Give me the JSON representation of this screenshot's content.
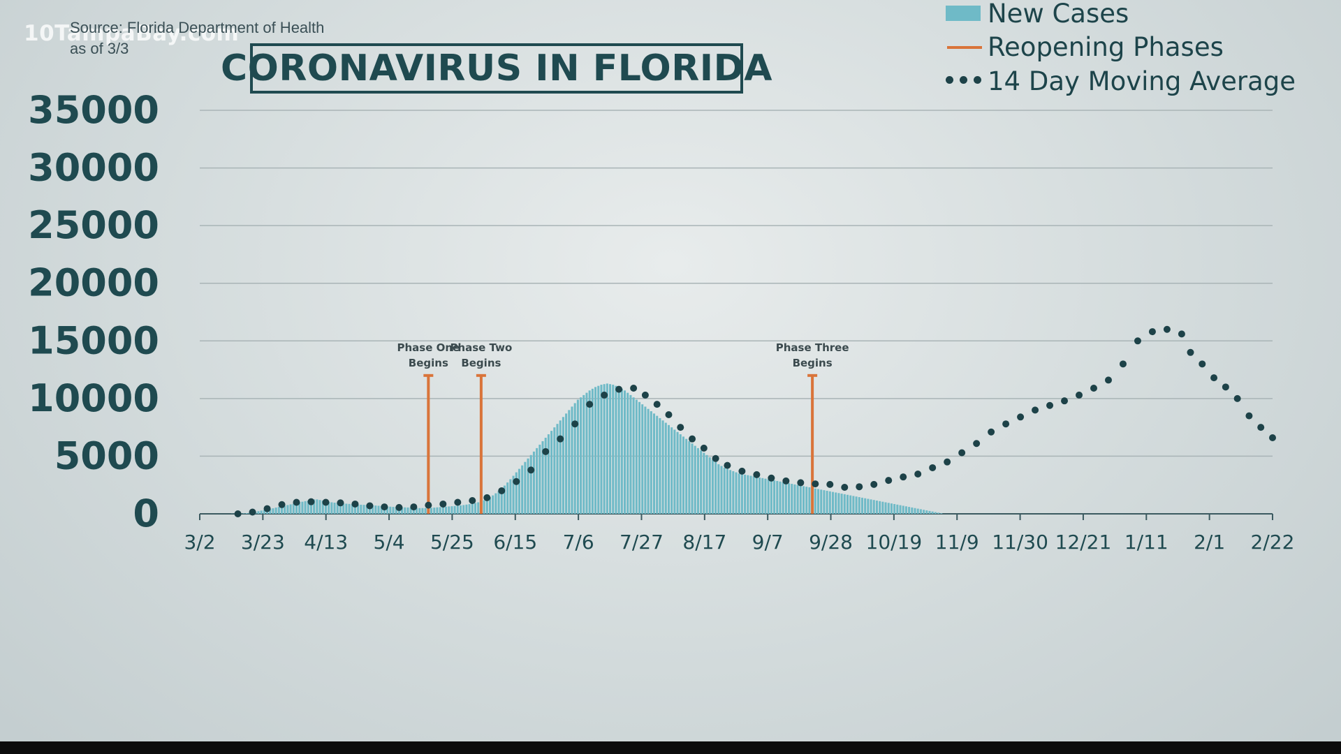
{
  "watermark": "10TampaBay.com",
  "source_line1": "Source: Florida Department of Health",
  "source_line2": "as of 3/3",
  "colors": {
    "bar": "#6fbac7",
    "phase": "#d9743a",
    "avg": "#1d4248",
    "axis_text": "#1f4a50",
    "grid": "#a9b4b6"
  },
  "chart_data": {
    "type": "bar",
    "title": "CORONAVIRUS IN FLORIDA",
    "ylim": [
      0,
      35000
    ],
    "yticks": [
      "35000",
      "30000",
      "25000",
      "20000",
      "15000",
      "10000",
      "5000",
      "0"
    ],
    "ytick_values": [
      35000,
      30000,
      25000,
      20000,
      15000,
      10000,
      5000,
      0
    ],
    "xticks": [
      "3/2",
      "3/23",
      "4/13",
      "5/4",
      "5/25",
      "6/15",
      "7/6",
      "7/27",
      "8/17",
      "9/7",
      "9/28",
      "10/19",
      "11/9",
      "11/30",
      "12/21",
      "1/11",
      "2/1",
      "2/22"
    ],
    "x_range_days": [
      0,
      366
    ],
    "grid": true,
    "legend_position": "top-right",
    "legend": {
      "bars": "New Cases",
      "phases": "Reopening Phases",
      "average": "14 Day Moving Average"
    },
    "phases": [
      {
        "line1": "Phase One",
        "line2": "Begins",
        "day": 78,
        "height": 12000
      },
      {
        "line1": "Phase Two",
        "line2": "Begins",
        "day": 96,
        "height": 12000
      },
      {
        "line1": "Phase Three",
        "line2": "Begins",
        "day": 209,
        "height": 12000
      }
    ],
    "series": [
      {
        "name": "New Cases",
        "type": "bar",
        "start_day": 0,
        "values": [
          0,
          0,
          0,
          0,
          0,
          0,
          0,
          0,
          0,
          0,
          0,
          15,
          20,
          25,
          30,
          40,
          60,
          90,
          130,
          180,
          230,
          280,
          330,
          380,
          430,
          480,
          540,
          600,
          660,
          700,
          760,
          820,
          880,
          950,
          1000,
          1050,
          1100,
          1150,
          1200,
          1250,
          1250,
          1200,
          1150,
          1100,
          1050,
          1000,
          970,
          950,
          930,
          900,
          880,
          860,
          840,
          820,
          800,
          790,
          780,
          770,
          760,
          750,
          720,
          700,
          680,
          660,
          640,
          620,
          600,
          590,
          580,
          570,
          560,
          550,
          540,
          520,
          510,
          500,
          500,
          500,
          510,
          520,
          540,
          560,
          580,
          600,
          620,
          640,
          660,
          680,
          700,
          730,
          760,
          800,
          840,
          880,
          940,
          1000,
          1080,
          1180,
          1300,
          1440,
          1600,
          1780,
          1980,
          2200,
          2450,
          2720,
          3000,
          3300,
          3600,
          3900,
          4200,
          4500,
          4800,
          5100,
          5400,
          5700,
          6000,
          6300,
          6600,
          6900,
          7200,
          7500,
          7800,
          8100,
          8400,
          8700,
          9000,
          9300,
          9600,
          9900,
          10100,
          10300,
          10500,
          10700,
          10850,
          11000,
          11100,
          11200,
          11250,
          11300,
          11250,
          11200,
          11100,
          11000,
          10850,
          10700,
          10500,
          10300,
          10100,
          9900,
          9700,
          9500,
          9300,
          9100,
          8900,
          8700,
          8500,
          8300,
          8100,
          7900,
          7700,
          7500,
          7300,
          7100,
          6900,
          6700,
          6500,
          6300,
          6100,
          5900,
          5700,
          5500,
          5300,
          5100,
          4900,
          4700,
          4500,
          4300,
          4150,
          4000,
          3900,
          3800,
          3700,
          3600,
          3500,
          3450,
          3400,
          3350,
          3300,
          3250,
          3200,
          3150,
          3100,
          3050,
          3000,
          2950,
          2900,
          2850,
          2800,
          2750,
          2700,
          2650,
          2600,
          2550,
          2500,
          2450,
          2400,
          2350,
          2300,
          2250,
          2200,
          2150,
          2100,
          2050,
          2000,
          1950,
          1900,
          1850,
          1800,
          1750,
          1700,
          1650,
          1600,
          1550,
          1500,
          1450,
          1400,
          1350,
          1300,
          1250,
          1200,
          1150,
          1100,
          1050,
          1000,
          950,
          900,
          850,
          800,
          750,
          700,
          650,
          600,
          550,
          500,
          450,
          400,
          350,
          300,
          250,
          200,
          150,
          100,
          50,
          0,
          0,
          0,
          0,
          0,
          0,
          0,
          0,
          0,
          0,
          0,
          0,
          0,
          0,
          0,
          0,
          0,
          0,
          0,
          0,
          0,
          0,
          0,
          0,
          0,
          0,
          0,
          0,
          0,
          0,
          0,
          0,
          0,
          0,
          0,
          0,
          0,
          0,
          0,
          0,
          0,
          0,
          0,
          0,
          0,
          0,
          0,
          0,
          0,
          0,
          0,
          0,
          0,
          0,
          0,
          0,
          0,
          0,
          0,
          0,
          0,
          0,
          0,
          0,
          0,
          0,
          0,
          0,
          0,
          0,
          0,
          0,
          0,
          0,
          0,
          0,
          0,
          0,
          0,
          0,
          0,
          0,
          0,
          0,
          0,
          0,
          0,
          0,
          0,
          0,
          0,
          0,
          0,
          0,
          0,
          0,
          0,
          0,
          0,
          0,
          0,
          0,
          0,
          0,
          0,
          0,
          0,
          0,
          0,
          0,
          0,
          0,
          0,
          0,
          0,
          0,
          0,
          0,
          0,
          0,
          0,
          0,
          0,
          0,
          0,
          0,
          0,
          0
        ]
      },
      {
        "name": "14 Day Moving Average",
        "type": "scatter",
        "x_days": [
          13,
          18,
          23,
          28,
          33,
          38,
          43,
          48,
          53,
          58,
          63,
          68,
          73,
          78,
          83,
          88,
          93,
          98,
          103,
          108,
          113,
          118,
          123,
          128,
          133,
          138,
          143,
          148,
          152,
          156,
          160,
          164,
          168,
          172,
          176,
          180,
          185,
          190,
          195,
          200,
          205,
          210,
          215,
          220,
          225,
          230,
          235,
          240,
          245,
          250,
          255,
          260,
          265,
          270,
          275,
          280,
          285,
          290,
          295,
          300,
          305,
          310,
          315,
          320,
          325,
          330,
          335,
          338,
          342,
          346,
          350,
          354,
          358,
          362,
          366
        ],
        "values": [
          0,
          150,
          450,
          800,
          1000,
          1050,
          1000,
          950,
          850,
          700,
          600,
          550,
          600,
          750,
          850,
          1000,
          1150,
          1400,
          2000,
          2800,
          3800,
          5400,
          6500,
          7800,
          9500,
          10300,
          10800,
          10900,
          10300,
          9500,
          8600,
          7500,
          6500,
          5700,
          4800,
          4200,
          3700,
          3400,
          3100,
          2850,
          2700,
          2600,
          2550,
          2300,
          2350,
          2550,
          2900,
          3200,
          3450,
          4000,
          4500,
          5300,
          6100,
          7100,
          7800,
          8400,
          9000,
          9400,
          9800,
          10300,
          10900,
          11600,
          13000,
          15000,
          15800,
          16000,
          15600,
          14000,
          13000,
          11800,
          11000,
          10000,
          8500,
          7500,
          6600
        ]
      }
    ]
  }
}
